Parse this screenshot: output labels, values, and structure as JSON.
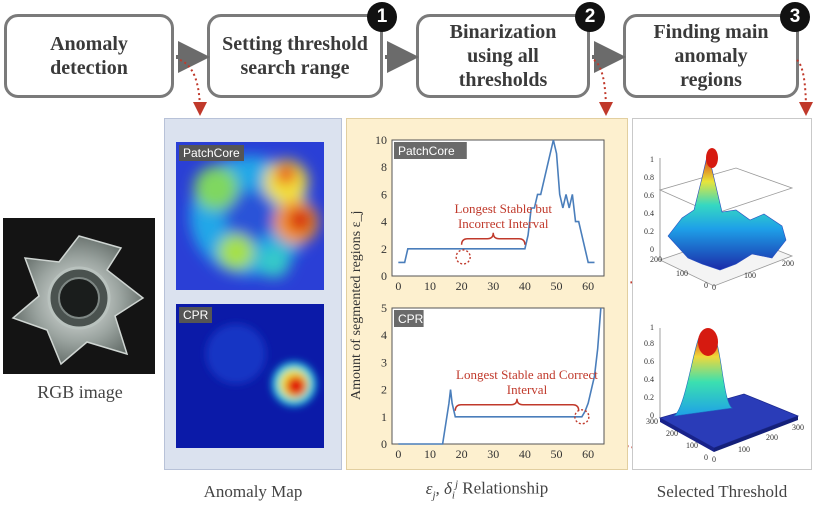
{
  "steps": [
    {
      "label": "Anomaly detection"
    },
    {
      "label": "Setting threshold search range",
      "badge": "1"
    },
    {
      "label": "Binarization using all thresholds",
      "badge": "2"
    },
    {
      "label": "Finding main anomaly regions",
      "badge": "3"
    }
  ],
  "captions": {
    "rgb": "RGB image",
    "anomaly_map": "Anomaly Map",
    "relationship": "Relationship",
    "selected": "Selected Threshold"
  },
  "maps": {
    "top": "PatchCore",
    "bottom": "CPR"
  },
  "chart_data": [
    {
      "type": "line",
      "title": "PatchCore",
      "ylabel": "Amount of segmented regions ε_j",
      "xlim": [
        -2,
        65
      ],
      "ylim": [
        0,
        10
      ],
      "xticks": [
        0,
        10,
        20,
        30,
        40,
        50,
        60
      ],
      "yticks": [
        0,
        2,
        4,
        6,
        8,
        10
      ],
      "x": [
        0,
        2,
        3,
        40,
        41,
        42,
        43,
        44,
        45,
        46,
        47,
        48,
        49,
        50,
        51,
        52,
        53,
        54,
        55,
        56,
        57,
        58,
        59,
        60,
        61,
        62
      ],
      "y": [
        1,
        1,
        2,
        2,
        3,
        5,
        5,
        6,
        6,
        7,
        8,
        9,
        10,
        9,
        6,
        5,
        6,
        5,
        6,
        4,
        4,
        3,
        2,
        1,
        1,
        1
      ],
      "annotation": "Longest Stable but Incorrect Interval",
      "interval": [
        20,
        40
      ]
    },
    {
      "type": "line",
      "title": "CPR",
      "xlim": [
        -2,
        65
      ],
      "ylim": [
        0,
        5
      ],
      "xticks": [
        0,
        10,
        20,
        30,
        40,
        50,
        60
      ],
      "yticks": [
        0,
        1,
        2,
        3,
        4,
        5
      ],
      "x": [
        0,
        14,
        16,
        16.5,
        17,
        18,
        57,
        58,
        59,
        60,
        61,
        62,
        63,
        64
      ],
      "y": [
        0,
        0,
        1.5,
        2,
        1.5,
        1,
        1,
        1,
        1.2,
        1.5,
        2,
        2.5,
        3.5,
        5
      ],
      "annotation": "Longest Stable and Correct Interval",
      "interval": [
        18,
        57
      ]
    }
  ],
  "surface_axes": {
    "top_z": [
      "1",
      "0.8",
      "0.6",
      "0.4",
      "0.2",
      "0"
    ],
    "top_x": [
      "0",
      "100",
      "200"
    ],
    "top_y": [
      "200",
      "100",
      "0"
    ],
    "bottom_z": [
      "1",
      "0.8",
      "0.6",
      "0.4",
      "0.2",
      "0"
    ],
    "bottom_x": [
      "0",
      "100",
      "200",
      "300"
    ],
    "bottom_y": [
      "300",
      "200",
      "100",
      "0"
    ]
  },
  "colors": {
    "arrow": "#6b6b6b",
    "dotted": "#c0392b",
    "panel_blue": "#dbe2ef",
    "panel_yellow": "#fdf0cf",
    "line": "#4a7ebb",
    "brace": "#c0392b"
  }
}
